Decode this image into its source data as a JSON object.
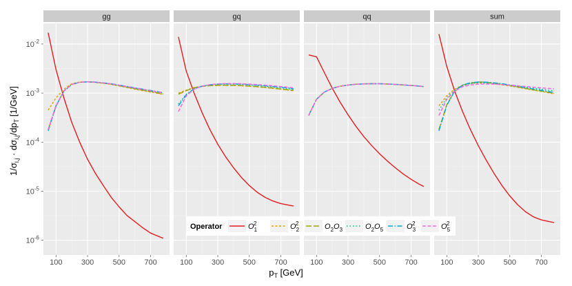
{
  "chart_data": {
    "type": "line",
    "scale_y": "log10",
    "x_label": "p_T [GeV]",
    "x_label_main": "p",
    "x_label_sub": "T",
    "x_label_unit": " [GeV]",
    "y_label": "1/σ_ij · dσ_ij/dp_T [1/GeV]",
    "y_label_parts": {
      "a": "1/σ",
      "a_sub": "i,j",
      "b": " · dσ",
      "b_sub": "i,j",
      "c": "/dp",
      "c_sub": "T",
      "d": " [1/GeV]"
    },
    "xlim": [
      20,
      820
    ],
    "ylim_log10": [
      -6.3,
      -1.58
    ],
    "x_ticks": [
      100,
      300,
      500,
      700
    ],
    "x_tick_labels": [
      "100",
      "300",
      "500",
      "700"
    ],
    "y_ticks_log10": [
      -6,
      -5,
      -4,
      -3,
      -2
    ],
    "y_tick_labels": [
      {
        "base": "10",
        "exp": "-6"
      },
      {
        "base": "10",
        "exp": "-5"
      },
      {
        "base": "10",
        "exp": "-4"
      },
      {
        "base": "10",
        "exp": "-3"
      },
      {
        "base": "10",
        "exp": "-2"
      }
    ],
    "x": [
      50,
      100,
      150,
      200,
      250,
      300,
      350,
      400,
      450,
      500,
      550,
      600,
      650,
      700,
      750,
      780
    ],
    "legend": {
      "title": "Operator",
      "position": "bottom-center-inside"
    },
    "series_styles": [
      {
        "key": "O1sq",
        "name": "O_1^2",
        "label_base": "O",
        "label_sub": "1",
        "label_sup": "2",
        "color": "#e41a1c",
        "dash": ""
      },
      {
        "key": "O2sq",
        "name": "O_2^2",
        "label_base": "O",
        "label_sub": "2",
        "label_sup": "2",
        "color": "#e69f00",
        "dash": "3,2.5"
      },
      {
        "key": "O2O3",
        "name": "O_2O_3",
        "label_base": "O",
        "label_sub": "2",
        "label_base2": "O",
        "label_sub2": "3",
        "color": "#99a800",
        "dash": "8,3"
      },
      {
        "key": "O2O5",
        "name": "O_2O_5",
        "label_base": "O",
        "label_sub": "2",
        "label_base2": "O",
        "label_sub2": "5",
        "color": "#00c08b",
        "dash": "1.5,3"
      },
      {
        "key": "O3sq",
        "name": "O_3^2",
        "label_base": "O",
        "label_sub": "3",
        "label_sup": "2",
        "color": "#00a9e0",
        "dash": "7,2.5,1.5,2.5"
      },
      {
        "key": "O5sq",
        "name": "O_5^2",
        "label_base": "O",
        "label_sub": "5",
        "label_sup": "2",
        "color": "#f564e3",
        "dash": "5,2.5"
      }
    ],
    "panels": [
      {
        "title": "gg",
        "series": {
          "O1sq": [
            0.017,
            0.003,
            0.0008,
            0.00025,
            0.0001,
            4.5e-05,
            2.3e-05,
            1.3e-05,
            7.5e-06,
            4.8e-06,
            3.2e-06,
            2.4e-06,
            1.8e-06,
            1.4e-06,
            1.2e-06,
            1.1e-06
          ],
          "O2sq": [
            0.00045,
            0.0008,
            0.0012,
            0.00155,
            0.00168,
            0.0017,
            0.00165,
            0.00158,
            0.0015,
            0.0014,
            0.0013,
            0.0012,
            0.00112,
            0.00105,
            0.00098,
            0.00094
          ],
          "O2O3": [
            0.00018,
            0.00055,
            0.0011,
            0.0015,
            0.00166,
            0.0017,
            0.00166,
            0.0016,
            0.00152,
            0.00142,
            0.00132,
            0.00123,
            0.00115,
            0.00108,
            0.001,
            0.00096
          ],
          "O2O5": [
            0.00018,
            0.00056,
            0.0011,
            0.0015,
            0.00166,
            0.0017,
            0.00167,
            0.00161,
            0.00153,
            0.00144,
            0.00135,
            0.00126,
            0.00118,
            0.00111,
            0.00104,
            0.001
          ],
          "O3sq": [
            0.00017,
            0.00054,
            0.0011,
            0.0015,
            0.00166,
            0.0017,
            0.00167,
            0.00162,
            0.00155,
            0.00146,
            0.00137,
            0.00128,
            0.0012,
            0.00113,
            0.00106,
            0.00102
          ],
          "O5sq": [
            0.00018,
            0.00055,
            0.0011,
            0.0015,
            0.00166,
            0.0017,
            0.00167,
            0.00161,
            0.00154,
            0.00145,
            0.00136,
            0.00127,
            0.00119,
            0.00112,
            0.00105,
            0.00101
          ]
        }
      },
      {
        "title": "gq",
        "series": {
          "O1sq": [
            0.014,
            0.0028,
            0.001,
            0.0004,
            0.00018,
            9e-05,
            5e-05,
            3e-05,
            1.9e-05,
            1.3e-05,
            9.5e-06,
            7.5e-06,
            6.3e-06,
            5.6e-06,
            5.2e-06,
            5e-06
          ],
          "O2sq": [
            0.001,
            0.00115,
            0.0013,
            0.00138,
            0.00142,
            0.00144,
            0.00144,
            0.00143,
            0.00141,
            0.00138,
            0.00134,
            0.0013,
            0.00125,
            0.0012,
            0.00115,
            0.00112
          ],
          "O2O3": [
            0.00095,
            0.00112,
            0.00128,
            0.00137,
            0.00142,
            0.00144,
            0.00145,
            0.00144,
            0.00142,
            0.00139,
            0.00135,
            0.00131,
            0.00126,
            0.00121,
            0.00116,
            0.00113
          ],
          "O2O5": [
            0.0006,
            0.00095,
            0.00122,
            0.00138,
            0.00147,
            0.00151,
            0.00153,
            0.00152,
            0.0015,
            0.00147,
            0.00143,
            0.00138,
            0.00133,
            0.00128,
            0.00122,
            0.00118
          ],
          "O3sq": [
            0.00055,
            0.00093,
            0.00122,
            0.00139,
            0.00148,
            0.00152,
            0.00154,
            0.00154,
            0.00152,
            0.00149,
            0.00145,
            0.00141,
            0.00136,
            0.00131,
            0.00126,
            0.00122
          ],
          "O5sq": [
            0.00042,
            0.00088,
            0.0012,
            0.00138,
            0.00149,
            0.00154,
            0.00156,
            0.00156,
            0.00155,
            0.00152,
            0.00149,
            0.00145,
            0.00141,
            0.00136,
            0.00131,
            0.00127
          ]
        }
      },
      {
        "title": "qq",
        "series": {
          "O1sq": [
            0.006,
            0.0055,
            0.0026,
            0.00125,
            0.00065,
            0.00036,
            0.00021,
            0.00013,
            8.5e-05,
            5.8e-05,
            4.1e-05,
            3e-05,
            2.25e-05,
            1.75e-05,
            1.4e-05,
            1.25e-05
          ],
          "O2sq": [
            0.00035,
            0.00075,
            0.00105,
            0.00125,
            0.00138,
            0.00146,
            0.00151,
            0.00154,
            0.00155,
            0.00155,
            0.00153,
            0.0015,
            0.00147,
            0.00143,
            0.00139,
            0.00136
          ],
          "O2O3": [
            0.00035,
            0.00075,
            0.00105,
            0.00125,
            0.00138,
            0.00146,
            0.00151,
            0.00154,
            0.00155,
            0.00155,
            0.00153,
            0.0015,
            0.00147,
            0.00143,
            0.00139,
            0.00136
          ],
          "O2O5": [
            0.00035,
            0.00075,
            0.00105,
            0.00125,
            0.00138,
            0.00146,
            0.00151,
            0.00154,
            0.00155,
            0.00155,
            0.00153,
            0.0015,
            0.00147,
            0.00143,
            0.00139,
            0.00136
          ],
          "O3sq": [
            0.00035,
            0.00075,
            0.00105,
            0.00125,
            0.00138,
            0.00146,
            0.00151,
            0.00154,
            0.00155,
            0.00155,
            0.00153,
            0.0015,
            0.00147,
            0.00143,
            0.00139,
            0.00136
          ],
          "O5sq": [
            0.00035,
            0.00075,
            0.00105,
            0.00125,
            0.00138,
            0.00146,
            0.00151,
            0.00154,
            0.00155,
            0.00155,
            0.00153,
            0.0015,
            0.00147,
            0.00143,
            0.00139,
            0.00136
          ]
        }
      },
      {
        "title": "sum",
        "series": {
          "O1sq": [
            0.016,
            0.0035,
            0.0011,
            0.00042,
            0.00018,
            8.5e-05,
            4.3e-05,
            2.3e-05,
            1.3e-05,
            8e-06,
            5.3e-06,
            3.8e-06,
            3e-06,
            2.6e-06,
            2.4e-06,
            2.3e-06
          ],
          "O2sq": [
            0.00055,
            0.00088,
            0.0012,
            0.00145,
            0.00157,
            0.00162,
            0.0016,
            0.00155,
            0.00148,
            0.0014,
            0.00131,
            0.00123,
            0.00115,
            0.00108,
            0.00101,
            0.00097
          ],
          "O2O3": [
            0.00018,
            0.00058,
            0.0011,
            0.00145,
            0.00162,
            0.00168,
            0.00166,
            0.0016,
            0.00152,
            0.00143,
            0.00134,
            0.00125,
            0.00117,
            0.0011,
            0.00103,
            0.00099
          ],
          "O2O5": [
            0.00045,
            0.0008,
            0.00115,
            0.00142,
            0.00156,
            0.00162,
            0.00162,
            0.00158,
            0.00153,
            0.00146,
            0.00139,
            0.00132,
            0.00126,
            0.0012,
            0.00114,
            0.00111
          ],
          "O3sq": [
            0.00017,
            0.00056,
            0.0011,
            0.00146,
            0.00162,
            0.00168,
            0.00167,
            0.00162,
            0.00155,
            0.00147,
            0.00138,
            0.00129,
            0.00121,
            0.00114,
            0.00107,
            0.00103
          ],
          "O5sq": [
            0.00035,
            0.00075,
            0.0011,
            0.00135,
            0.00147,
            0.00152,
            0.00153,
            0.00152,
            0.00149,
            0.00145,
            0.00141,
            0.00136,
            0.00132,
            0.00128,
            0.00124,
            0.00122
          ]
        }
      }
    ]
  }
}
